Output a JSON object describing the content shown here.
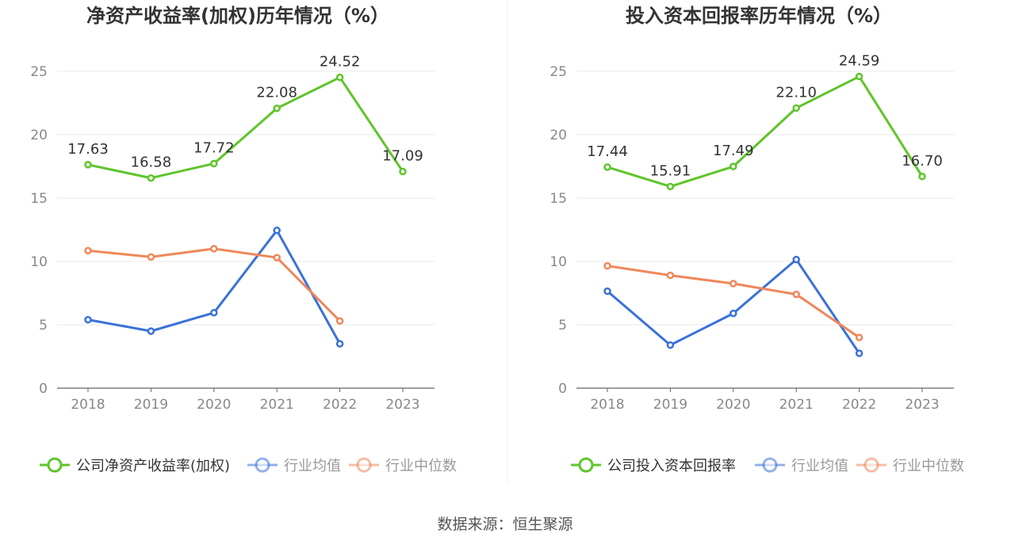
{
  "source": "数据来源：恒生聚源",
  "colors": {
    "company": "#5ec52a",
    "avg": "#3a72d8",
    "median": "#f0875a",
    "grid": "#e8e8e8",
    "axis": "#666666",
    "text": "#333333",
    "tick": "#888888"
  },
  "chart_data": [
    {
      "type": "line",
      "title": "净资产收益率(加权)历年情况（%）",
      "categories": [
        "2018",
        "2019",
        "2020",
        "2021",
        "2022",
        "2023"
      ],
      "ylim": [
        0,
        25
      ],
      "yticks": [
        "0",
        "5",
        "10",
        "15",
        "20",
        "25"
      ],
      "grid": true,
      "legend_position": "bottom-left",
      "series": [
        {
          "name": "公司净资产收益率(加权)",
          "color": "#5ec52a",
          "values": [
            17.63,
            16.58,
            17.72,
            22.08,
            24.52,
            17.09
          ],
          "labels": [
            "17.63",
            "16.58",
            "17.72",
            "22.08",
            "24.52",
            "17.09"
          ]
        },
        {
          "name": "行业均值",
          "color": "#3a72d8",
          "values": [
            5.4,
            4.5,
            5.95,
            12.45,
            3.5,
            null
          ]
        },
        {
          "name": "行业中位数",
          "color": "#f0875a",
          "values": [
            10.85,
            10.35,
            11.0,
            10.3,
            5.3,
            null
          ]
        }
      ]
    },
    {
      "type": "line",
      "title": "投入资本回报率历年情况（%）",
      "categories": [
        "2018",
        "2019",
        "2020",
        "2021",
        "2022",
        "2023"
      ],
      "ylim": [
        0,
        25
      ],
      "yticks": [
        "0",
        "5",
        "10",
        "15",
        "20",
        "25"
      ],
      "grid": true,
      "legend_position": "bottom-left",
      "series": [
        {
          "name": "公司投入资本回报率",
          "color": "#5ec52a",
          "values": [
            17.44,
            15.91,
            17.49,
            22.1,
            24.59,
            16.7
          ],
          "labels": [
            "17.44",
            "15.91",
            "17.49",
            "22.10",
            "24.59",
            "16.70"
          ]
        },
        {
          "name": "行业均值",
          "color": "#3a72d8",
          "values": [
            7.65,
            3.4,
            5.9,
            10.15,
            2.75,
            null
          ]
        },
        {
          "name": "行业中位数",
          "color": "#f0875a",
          "values": [
            9.65,
            8.9,
            8.25,
            7.4,
            4.0,
            null
          ]
        }
      ]
    }
  ]
}
